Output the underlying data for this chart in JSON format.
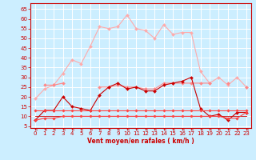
{
  "x": [
    0,
    1,
    2,
    3,
    4,
    5,
    6,
    7,
    8,
    9,
    10,
    11,
    12,
    13,
    14,
    15,
    16,
    17,
    18,
    19,
    20,
    21,
    22,
    23
  ],
  "series": [
    {
      "name": "rafales_max",
      "color": "#ffaaaa",
      "lw": 0.8,
      "marker": "D",
      "ms": 2.0,
      "y": [
        19,
        24,
        26,
        32,
        39,
        37,
        46,
        56,
        55,
        56,
        62,
        55,
        54,
        50,
        57,
        52,
        53,
        53,
        33,
        27,
        30,
        26,
        30,
        25
      ]
    },
    {
      "name": "rafales_mean",
      "color": "#ff8888",
      "lw": 0.8,
      "marker": "D",
      "ms": 2.0,
      "y": [
        null,
        26,
        26,
        27,
        null,
        null,
        null,
        25,
        25,
        26,
        25,
        25,
        24,
        24,
        27,
        27,
        27,
        27,
        27,
        27,
        null,
        27,
        null,
        25
      ]
    },
    {
      "name": "vent_max",
      "color": "#cc0000",
      "lw": 0.8,
      "marker": "D",
      "ms": 2.0,
      "y": [
        8,
        13,
        13,
        20,
        15,
        14,
        13,
        21,
        25,
        27,
        24,
        25,
        23,
        23,
        26,
        27,
        28,
        30,
        14,
        10,
        11,
        8,
        12,
        12
      ]
    },
    {
      "name": "vent_mean_band1",
      "color": "#cc0000",
      "lw": 0.6,
      "marker": null,
      "ms": 0,
      "y": [
        13,
        13,
        13,
        13,
        13,
        13,
        13,
        13,
        13,
        13,
        13,
        13,
        13,
        13,
        13,
        13,
        13,
        13,
        13,
        13,
        13,
        13,
        13,
        13
      ]
    },
    {
      "name": "vent_mean_band2",
      "color": "#cc0000",
      "lw": 0.6,
      "marker": null,
      "ms": 0,
      "y": [
        10,
        10,
        10,
        10,
        10,
        10,
        10,
        10,
        10,
        10,
        10,
        10,
        10,
        10,
        10,
        10,
        10,
        10,
        10,
        10,
        10,
        10,
        10,
        10
      ]
    },
    {
      "name": "vent_ref_high",
      "color": "#ff4444",
      "lw": 0.8,
      "marker": "D",
      "ms": 1.8,
      "y": [
        13,
        13,
        13,
        13,
        13,
        13,
        13,
        13,
        13,
        13,
        13,
        13,
        13,
        13,
        13,
        13,
        13,
        13,
        13,
        13,
        13,
        13,
        13,
        13
      ]
    },
    {
      "name": "vent_ref_low",
      "color": "#ff4444",
      "lw": 0.8,
      "marker": "D",
      "ms": 1.8,
      "y": [
        8,
        9,
        9,
        10,
        10,
        10,
        10,
        10,
        10,
        10,
        10,
        10,
        10,
        10,
        10,
        10,
        10,
        10,
        10,
        10,
        10,
        9,
        9,
        12
      ]
    }
  ],
  "xlim": [
    -0.5,
    23.5
  ],
  "ylim": [
    4,
    68
  ],
  "yticks": [
    5,
    10,
    15,
    20,
    25,
    30,
    35,
    40,
    45,
    50,
    55,
    60,
    65
  ],
  "xticks": [
    0,
    1,
    2,
    3,
    4,
    5,
    6,
    7,
    8,
    9,
    10,
    11,
    12,
    13,
    14,
    15,
    16,
    17,
    18,
    19,
    20,
    21,
    22,
    23
  ],
  "xlabel": "Vent moyen/en rafales ( km/h )",
  "bg_color": "#cceeff",
  "grid_color": "#aaddcc",
  "tick_color": "#cc0000",
  "label_color": "#cc0000"
}
